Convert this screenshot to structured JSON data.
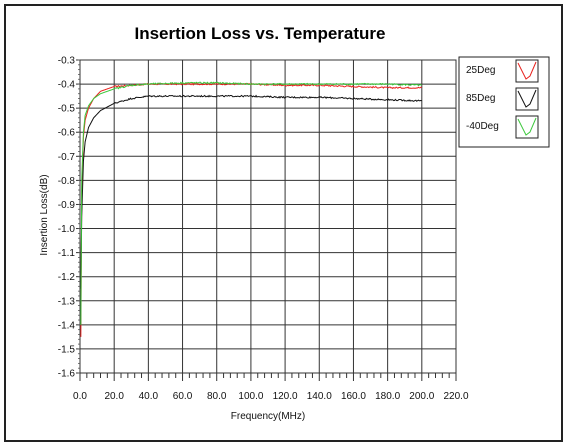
{
  "chart_data": {
    "type": "line",
    "title": "Insertion Loss vs. Temperature",
    "xlabel": "Frequency(MHz)",
    "ylabel": "Insertion Loss(dB)",
    "xlim": [
      0,
      220
    ],
    "ylim": [
      -1.6,
      -0.3
    ],
    "x_ticks": [
      "0.0",
      "20.0",
      "40.0",
      "60.0",
      "80.0",
      "100.0",
      "120.0",
      "140.0",
      "160.0",
      "180.0",
      "200.0",
      "220.0"
    ],
    "y_ticks": [
      "-0.3",
      "-0.4",
      "-0.5",
      "-0.6",
      "-0.7",
      "-0.8",
      "-0.9",
      "-1.0",
      "-1.1",
      "-1.2",
      "-1.3",
      "-1.4",
      "-1.5",
      "-1.6"
    ],
    "grid": true,
    "legend_position": "top-right",
    "series": [
      {
        "name": "25Deg",
        "color": "#e8221e",
        "x": [
          0.5,
          1,
          2,
          3,
          5,
          8,
          12,
          20,
          30,
          40,
          60,
          80,
          100,
          120,
          140,
          160,
          180,
          200
        ],
        "y": [
          -1.45,
          -0.85,
          -0.62,
          -0.55,
          -0.5,
          -0.46,
          -0.43,
          -0.41,
          -0.405,
          -0.4,
          -0.4,
          -0.4,
          -0.4,
          -0.405,
          -0.405,
          -0.41,
          -0.415,
          -0.415
        ]
      },
      {
        "name": "85Deg",
        "color": "#111111",
        "x": [
          0.5,
          1,
          2,
          3,
          5,
          8,
          12,
          20,
          30,
          40,
          60,
          80,
          100,
          120,
          140,
          160,
          180,
          200
        ],
        "y": [
          -1.25,
          -0.95,
          -0.72,
          -0.64,
          -0.58,
          -0.54,
          -0.51,
          -0.48,
          -0.46,
          -0.45,
          -0.45,
          -0.45,
          -0.45,
          -0.455,
          -0.455,
          -0.46,
          -0.465,
          -0.47
        ]
      },
      {
        "name": "-40Deg",
        "color": "#3cc83c",
        "x": [
          0.5,
          1,
          2,
          3,
          5,
          8,
          12,
          20,
          30,
          40,
          60,
          80,
          100,
          120,
          140,
          160,
          180,
          200
        ],
        "y": [
          -1.4,
          -0.8,
          -0.6,
          -0.53,
          -0.49,
          -0.46,
          -0.44,
          -0.42,
          -0.405,
          -0.4,
          -0.395,
          -0.395,
          -0.4,
          -0.4,
          -0.4,
          -0.4,
          -0.4,
          -0.405
        ]
      }
    ]
  }
}
